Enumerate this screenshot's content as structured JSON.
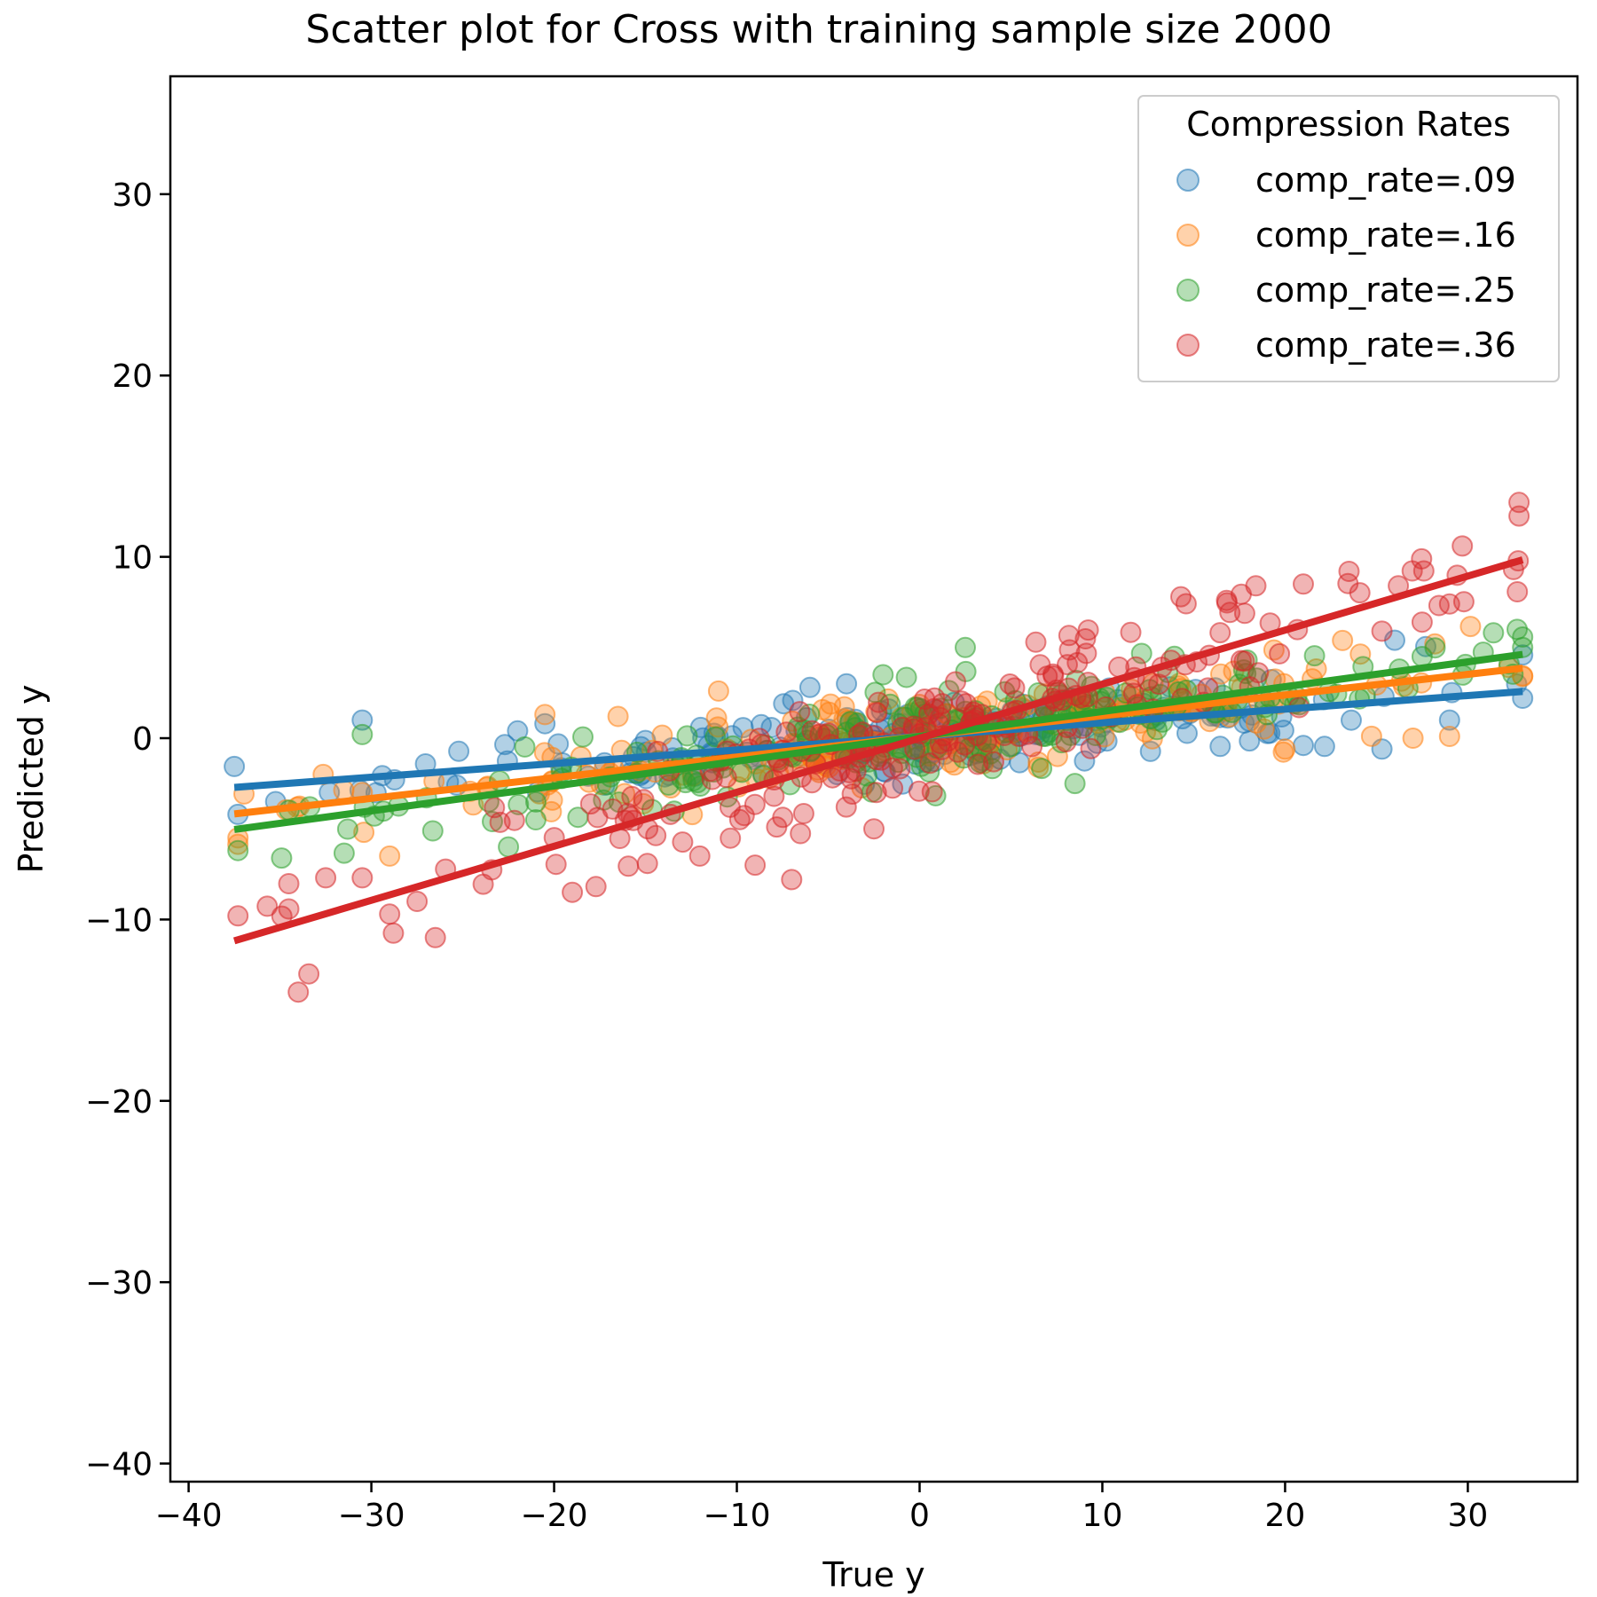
{
  "chart_data": {
    "type": "scatter",
    "title": "Scatter plot for Cross with training sample size 2000",
    "xlabel": "True y",
    "ylabel": "Predicted y",
    "xlim": [
      -41,
      36
    ],
    "ylim": [
      -41,
      36.5
    ],
    "xticks": [
      -40,
      -30,
      -20,
      -10,
      0,
      10,
      20,
      30
    ],
    "yticks": [
      -40,
      -30,
      -20,
      -10,
      0,
      10,
      20,
      30
    ],
    "xtick_labels": [
      "−40",
      "−30",
      "−20",
      "−10",
      "0",
      "10",
      "20",
      "30"
    ],
    "ytick_labels": [
      "−40",
      "−30",
      "−20",
      "−10",
      "0",
      "10",
      "20",
      "30"
    ],
    "grid": false,
    "legend": {
      "title": "Compression Rates",
      "placement": "top-right"
    },
    "x_range_sampled": [
      -37.5,
      33
    ],
    "series": [
      {
        "name": "comp_rate=.09",
        "color": "#1f77b4",
        "fit": {
          "slope": 0.075,
          "intercept": 0.1,
          "x_start": -37.5,
          "x_end": 33
        },
        "scatter_sd": 1.0,
        "extra_points": [
          [
            -30.5,
            1.0
          ],
          [
            -22,
            0.4
          ],
          [
            -20.5,
            0.8
          ],
          [
            -6,
            2.8
          ],
          [
            -4,
            3.0
          ],
          [
            -37.3,
            -4.2
          ],
          [
            26,
            5.4
          ],
          [
            25.3,
            -0.6
          ],
          [
            29,
            1.0
          ],
          [
            21,
            -0.4
          ],
          [
            33,
            2.2
          ]
        ]
      },
      {
        "name": "comp_rate=.16",
        "color": "#ff7f0e",
        "fit": {
          "slope": 0.114,
          "intercept": 0.1,
          "x_start": -37.5,
          "x_end": 33
        },
        "scatter_sd": 1.1,
        "extra_points": [
          [
            -29,
            -6.5
          ],
          [
            -30.5,
            -3.0
          ],
          [
            -20.5,
            1.3
          ],
          [
            -16.5,
            1.2
          ],
          [
            -11,
            2.6
          ],
          [
            -37.3,
            -5.5
          ],
          [
            28.2,
            5.2
          ],
          [
            27,
            0.0
          ],
          [
            29,
            0.1
          ],
          [
            33,
            3.4
          ],
          [
            20,
            -0.6
          ]
        ]
      },
      {
        "name": "comp_rate=.25",
        "color": "#2ca02c",
        "fit": {
          "slope": 0.137,
          "intercept": 0.1,
          "x_start": -37.5,
          "x_end": 33
        },
        "scatter_sd": 1.2,
        "extra_points": [
          [
            -37.3,
            -6.2
          ],
          [
            -30.5,
            0.2
          ],
          [
            -22.5,
            -6.0
          ],
          [
            -21,
            -4.5
          ],
          [
            -2,
            3.5
          ],
          [
            2.5,
            5.0
          ],
          [
            32.7,
            6.0
          ],
          [
            33,
            5.0
          ],
          [
            8.5,
            -2.5
          ],
          [
            27.5,
            4.5
          ]
        ]
      },
      {
        "name": "comp_rate=.36",
        "color": "#d62728",
        "fit": {
          "slope": 0.298,
          "intercept": 0.0,
          "x_start": -37.5,
          "x_end": 33
        },
        "scatter_sd": 1.5,
        "extra_points": [
          [
            -34,
            -14.0
          ],
          [
            -37.3,
            -9.8
          ],
          [
            -26.5,
            -11.0
          ],
          [
            -29,
            -9.7
          ],
          [
            -27.5,
            -9.0
          ],
          [
            -30.5,
            -7.7
          ],
          [
            -32.5,
            -7.7
          ],
          [
            -19,
            -8.5
          ],
          [
            -9,
            -7.0
          ],
          [
            -7,
            -7.8
          ],
          [
            -2.5,
            -5.0
          ],
          [
            32.8,
            13.0
          ],
          [
            29.7,
            10.6
          ],
          [
            32.5,
            9.3
          ],
          [
            26.2,
            8.4
          ],
          [
            23.5,
            9.2
          ],
          [
            27.5,
            6.4
          ],
          [
            29,
            7.4
          ],
          [
            25.3,
            5.9
          ],
          [
            14.3,
            7.8
          ],
          [
            16.8,
            7.6
          ],
          [
            18.4,
            8.4
          ],
          [
            21,
            8.5
          ]
        ]
      }
    ]
  }
}
